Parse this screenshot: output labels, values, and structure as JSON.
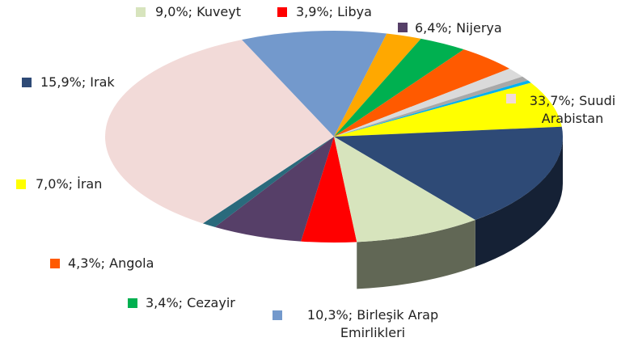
{
  "chart_data": {
    "type": "pie3d",
    "values": [
      3.9,
      6.4,
      1.0,
      33.7,
      10.3,
      2.5,
      3.4,
      4.3,
      1.5,
      0.7,
      0.4,
      7.0,
      15.9,
      9.0
    ],
    "value_labels": [
      "3,9%; Libya",
      "6,4%; Nijerya",
      null,
      "33,7%; Suudi Arabistan",
      "10,3%; Birleşik Arap Emirlikleri",
      null,
      "3,4%; Cezayir",
      "4,3%; Angola",
      null,
      null,
      null,
      "7,0%; İran",
      "15,9%; Irak",
      "9,0%; Kuveyt"
    ],
    "colors": [
      "#ff0000",
      "#563f68",
      "#2a6a7c",
      "#f2dad8",
      "#7399cc",
      "#ffa800",
      "#00b050",
      "#ff5a00",
      "#dadada",
      "#a8a8a8",
      "#00b0f0",
      "#ffff00",
      "#2e4a76",
      "#d7e4bd"
    ]
  }
}
